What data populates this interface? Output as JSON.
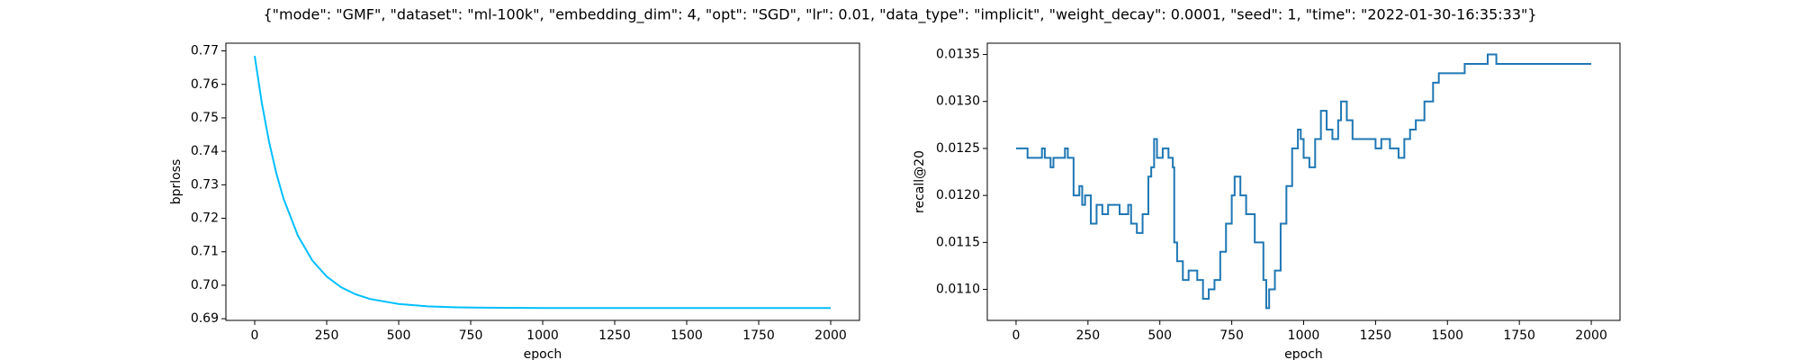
{
  "title": "{\"mode\": \"GMF\", \"dataset\": \"ml-100k\", \"embedding_dim\": 4, \"opt\": \"SGD\", \"lr\": 0.01, \"data_type\": \"implicit\", \"weight_decay\": 0.0001, \"seed\": 1, \"time\": \"2022-01-30-16:35:33\"}",
  "chart_data": [
    {
      "type": "line",
      "xlabel": "epoch",
      "ylabel": "bprloss",
      "x": [
        0,
        25,
        50,
        75,
        100,
        150,
        200,
        250,
        300,
        350,
        400,
        500,
        600,
        700,
        800,
        1000,
        1250,
        1500,
        1750,
        2000
      ],
      "series": [
        {
          "color": "#00bfff",
          "values": [
            0.7685,
            0.7543,
            0.7428,
            0.7335,
            0.7259,
            0.7148,
            0.7074,
            0.7026,
            0.6994,
            0.6973,
            0.6959,
            0.6944,
            0.6937,
            0.6934,
            0.6933,
            0.6932,
            0.6932,
            0.6932,
            0.6932,
            0.6932
          ]
        }
      ],
      "xlim": [
        -100,
        2100
      ],
      "ylim": [
        0.6895,
        0.7723
      ],
      "xticks": [
        0,
        250,
        500,
        750,
        1000,
        1250,
        1500,
        1750,
        2000
      ],
      "yticks": [
        0.69,
        {
          "value": 0.7,
          "label": "0.70"
        },
        0.71,
        0.72,
        0.73,
        0.74,
        0.75,
        0.76,
        0.77
      ]
    },
    {
      "type": "step",
      "xlabel": "epoch",
      "ylabel": "recall@20",
      "x": [
        0,
        40,
        90,
        100,
        120,
        130,
        170,
        180,
        200,
        220,
        230,
        240,
        260,
        280,
        300,
        320,
        360,
        390,
        400,
        420,
        440,
        460,
        470,
        480,
        490,
        510,
        530,
        545,
        550,
        560,
        580,
        600,
        630,
        650,
        670,
        690,
        710,
        730,
        750,
        760,
        780,
        800,
        830,
        860,
        870,
        880,
        900,
        920,
        940,
        960,
        980,
        990,
        1000,
        1020,
        1040,
        1060,
        1080,
        1100,
        1120,
        1130,
        1150,
        1170,
        1250,
        1270,
        1300,
        1330,
        1350,
        1370,
        1390,
        1420,
        1450,
        1470,
        1560,
        1640,
        1670,
        2000
      ],
      "series": [
        {
          "color": "#1f77b4",
          "values": [
            0.0125,
            0.0124,
            0.0125,
            0.0124,
            0.0123,
            0.0124,
            0.0125,
            0.0124,
            0.012,
            0.0121,
            0.0119,
            0.012,
            0.0117,
            0.0119,
            0.0118,
            0.0119,
            0.0118,
            0.0119,
            0.0117,
            0.0116,
            0.0118,
            0.0122,
            0.0123,
            0.0126,
            0.0124,
            0.0125,
            0.0124,
            0.0123,
            0.0115,
            0.0113,
            0.0111,
            0.0112,
            0.0111,
            0.0109,
            0.011,
            0.0111,
            0.0114,
            0.0117,
            0.012,
            0.0122,
            0.012,
            0.0118,
            0.0115,
            0.0111,
            0.0108,
            0.011,
            0.0112,
            0.0117,
            0.0121,
            0.0125,
            0.0127,
            0.0126,
            0.0124,
            0.0123,
            0.0126,
            0.0129,
            0.0127,
            0.0126,
            0.0128,
            0.013,
            0.0128,
            0.0126,
            0.0125,
            0.0126,
            0.0125,
            0.0124,
            0.0126,
            0.0127,
            0.0128,
            0.013,
            0.0132,
            0.0133,
            0.0134,
            0.0135,
            0.0134,
            0.0134
          ]
        }
      ],
      "xlim": [
        -100,
        2100
      ],
      "ylim": [
        0.01067,
        0.01362
      ],
      "xticks": [
        0,
        250,
        500,
        750,
        1000,
        1250,
        1500,
        1750,
        2000
      ],
      "yticks": [
        {
          "value": 0.011,
          "label": "0.0110"
        },
        0.0115,
        {
          "value": 0.012,
          "label": "0.0120"
        },
        0.0125,
        {
          "value": 0.013,
          "label": "0.0130"
        },
        0.0135
      ]
    }
  ]
}
